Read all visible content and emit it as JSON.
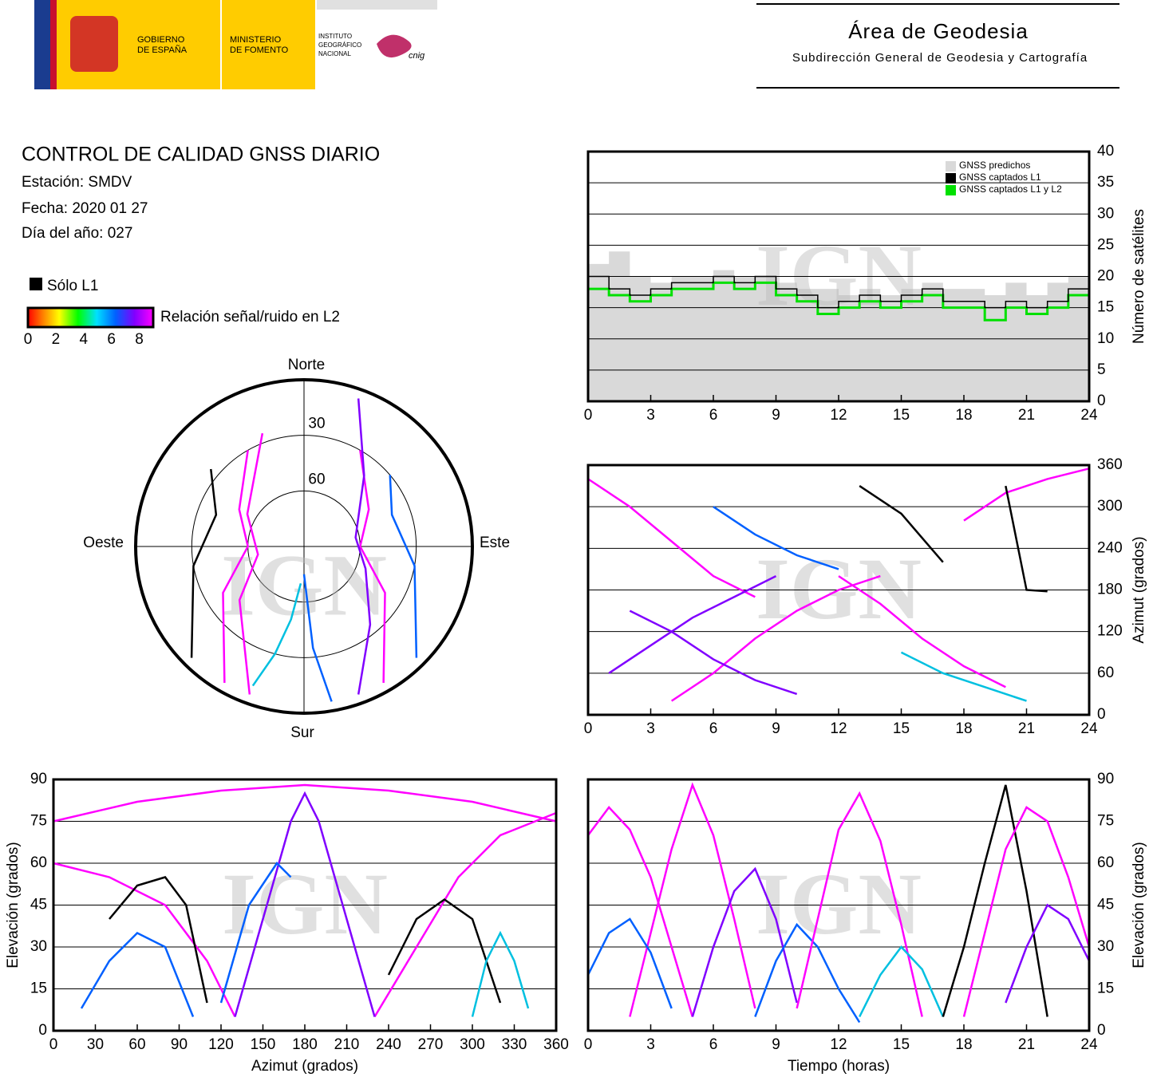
{
  "header": {
    "gobierno": [
      "GOBIERNO",
      "DE ESPAÑA"
    ],
    "ministerio": [
      "MINISTERIO",
      "DE FOMENTO"
    ],
    "instituto": [
      "INSTITUTO",
      "GEOGRÁFICO",
      "NACIONAL"
    ],
    "cnig": "cnig",
    "area": "Área de Geodesia",
    "subdireccion": "Subdirección General de Geodesia y Cartografía"
  },
  "report": {
    "title": "CONTROL DE CALIDAD GNSS DIARIO",
    "station": "Estación: SMDV",
    "date": "Fecha: 2020 01 27",
    "doy": "Día del año: 027",
    "l1_only": "Sólo L1",
    "snr_label": "Relación señal/ruido en L2",
    "snr_range": [
      0,
      9
    ],
    "snr_ticks": [
      0,
      2,
      4,
      6,
      8
    ],
    "watermark": "IGN"
  },
  "chart_data": [
    {
      "type": "step",
      "ylabel": "Número de satélites",
      "yaxis_side": "right",
      "grid": true,
      "legend": "upper right",
      "xlim": [
        0,
        24
      ],
      "xticks": [
        0,
        3,
        6,
        9,
        12,
        15,
        18,
        21,
        24
      ],
      "ylim": [
        0,
        40
      ],
      "yticks": [
        0,
        5,
        10,
        15,
        20,
        25,
        30,
        35,
        40
      ],
      "x": [
        0,
        1,
        2,
        3,
        4,
        5,
        6,
        7,
        8,
        9,
        10,
        11,
        12,
        13,
        14,
        15,
        16,
        17,
        18,
        19,
        20,
        21,
        22,
        23,
        24
      ],
      "series": [
        {
          "name": "GNSS predichos",
          "color": "#d9d9d9",
          "fill": true,
          "values": [
            22,
            24,
            20,
            19,
            20,
            20,
            21,
            20,
            20,
            19,
            18,
            18,
            17,
            18,
            17,
            18,
            19,
            18,
            18,
            17,
            19,
            17,
            19,
            20,
            21
          ]
        },
        {
          "name": "GNSS captados L1",
          "color": "#000000",
          "values": [
            20,
            18,
            17,
            18,
            19,
            19,
            20,
            19,
            20,
            18,
            17,
            15,
            16,
            17,
            16,
            17,
            18,
            16,
            16,
            15,
            16,
            15,
            16,
            18,
            19
          ]
        },
        {
          "name": "GNSS captados L1 y L2",
          "color": "#00e000",
          "values": [
            18,
            17,
            16,
            17,
            18,
            18,
            19,
            18,
            19,
            17,
            16,
            14,
            15,
            16,
            15,
            16,
            17,
            15,
            15,
            13,
            15,
            14,
            15,
            17,
            18
          ]
        }
      ]
    },
    {
      "type": "line",
      "ylabel": "Azimut (grados)",
      "yaxis_side": "right",
      "grid": true,
      "xlim": [
        0,
        24
      ],
      "xticks": [
        0,
        3,
        6,
        9,
        12,
        15,
        18,
        21,
        24
      ],
      "ylim": [
        0,
        360
      ],
      "yticks": [
        0,
        60,
        120,
        180,
        240,
        300,
        360
      ],
      "series": [
        {
          "color": "#ff00ff",
          "x": [
            0,
            2,
            4,
            6,
            8
          ],
          "values": [
            340,
            300,
            250,
            200,
            170
          ]
        },
        {
          "color": "#8000ff",
          "x": [
            1,
            3,
            5,
            7,
            9
          ],
          "values": [
            60,
            100,
            140,
            170,
            200
          ]
        },
        {
          "color": "#ff00ff",
          "x": [
            4,
            6,
            8,
            10,
            12,
            14
          ],
          "values": [
            20,
            60,
            110,
            150,
            180,
            200
          ]
        },
        {
          "color": "#0060ff",
          "x": [
            6,
            8,
            10,
            12
          ],
          "values": [
            300,
            260,
            230,
            210
          ]
        },
        {
          "color": "#000000",
          "x": [
            13,
            15,
            17
          ],
          "values": [
            330,
            290,
            220
          ]
        },
        {
          "color": "#ff00ff",
          "x": [
            12,
            14,
            16,
            18,
            20
          ],
          "values": [
            200,
            160,
            110,
            70,
            40
          ]
        },
        {
          "color": "#00c0e0",
          "x": [
            15,
            17,
            19,
            21
          ],
          "values": [
            90,
            60,
            40,
            20
          ]
        },
        {
          "color": "#ff00ff",
          "x": [
            18,
            20,
            22,
            24
          ],
          "values": [
            280,
            320,
            340,
            355
          ]
        },
        {
          "color": "#8000ff",
          "x": [
            2,
            4,
            6,
            8,
            10
          ],
          "values": [
            150,
            120,
            80,
            50,
            30
          ]
        },
        {
          "color": "#000000",
          "x": [
            20,
            21,
            22
          ],
          "values": [
            330,
            180,
            178
          ]
        }
      ]
    },
    {
      "type": "line",
      "xlabel": "Azimut (grados)",
      "ylabel": "Elevación (grados)",
      "yaxis_side": "left",
      "grid": true,
      "xlim": [
        0,
        360
      ],
      "xticks": [
        0,
        30,
        60,
        90,
        120,
        150,
        180,
        210,
        240,
        270,
        300,
        330,
        360
      ],
      "ylim": [
        0,
        90
      ],
      "yticks": [
        0,
        15,
        30,
        45,
        60,
        75,
        90
      ],
      "series": [
        {
          "color": "#ff00ff",
          "x": [
            0,
            60,
            120,
            180,
            240,
            300,
            360
          ],
          "values": [
            75,
            82,
            86,
            88,
            86,
            82,
            75
          ]
        },
        {
          "color": "#ff00ff",
          "x": [
            0,
            40,
            80,
            110,
            130
          ],
          "values": [
            60,
            55,
            45,
            25,
            5
          ]
        },
        {
          "color": "#ff00ff",
          "x": [
            230,
            260,
            290,
            320,
            360
          ],
          "values": [
            5,
            30,
            55,
            70,
            78
          ]
        },
        {
          "color": "#000000",
          "x": [
            40,
            60,
            80,
            95,
            110
          ],
          "values": [
            40,
            52,
            55,
            45,
            10
          ]
        },
        {
          "color": "#0060ff",
          "x": [
            20,
            40,
            60,
            80,
            100
          ],
          "values": [
            8,
            25,
            35,
            30,
            5
          ]
        },
        {
          "color": "#000000",
          "x": [
            240,
            260,
            280,
            300,
            320
          ],
          "values": [
            20,
            40,
            47,
            40,
            10
          ]
        },
        {
          "color": "#8000ff",
          "x": [
            130,
            150,
            170,
            180,
            190,
            210,
            230
          ],
          "values": [
            5,
            40,
            75,
            85,
            75,
            40,
            5
          ]
        },
        {
          "color": "#00c0e0",
          "x": [
            300,
            310,
            320,
            330,
            340
          ],
          "values": [
            5,
            25,
            35,
            25,
            8
          ]
        },
        {
          "color": "#0060ff",
          "x": [
            120,
            140,
            160,
            170
          ],
          "values": [
            10,
            45,
            60,
            55
          ]
        }
      ]
    },
    {
      "type": "line",
      "xlabel": "Tiempo (horas)",
      "ylabel": "Elevación (grados)",
      "yaxis_side": "right",
      "grid": true,
      "xlim": [
        0,
        24
      ],
      "xticks": [
        0,
        3,
        6,
        9,
        12,
        15,
        18,
        21,
        24
      ],
      "ylim": [
        0,
        90
      ],
      "yticks": [
        0,
        15,
        30,
        45,
        60,
        75,
        90
      ],
      "series": [
        {
          "color": "#ff00ff",
          "x": [
            0,
            1,
            2,
            3,
            4,
            5
          ],
          "values": [
            70,
            80,
            72,
            55,
            30,
            5
          ]
        },
        {
          "color": "#ff00ff",
          "x": [
            2,
            3,
            4,
            5,
            6,
            7,
            8
          ],
          "values": [
            5,
            35,
            65,
            88,
            70,
            40,
            8
          ]
        },
        {
          "color": "#8000ff",
          "x": [
            5,
            6,
            7,
            8,
            9,
            10
          ],
          "values": [
            5,
            30,
            50,
            58,
            40,
            10
          ]
        },
        {
          "color": "#0060ff",
          "x": [
            8,
            9,
            10,
            11,
            12,
            13
          ],
          "values": [
            5,
            25,
            38,
            30,
            15,
            3
          ]
        },
        {
          "color": "#ff00ff",
          "x": [
            10,
            11,
            12,
            13,
            14,
            15,
            16
          ],
          "values": [
            8,
            40,
            72,
            85,
            68,
            38,
            5
          ]
        },
        {
          "color": "#00c0e0",
          "x": [
            13,
            14,
            15,
            16,
            17
          ],
          "values": [
            5,
            20,
            30,
            22,
            5
          ]
        },
        {
          "color": "#000000",
          "x": [
            17,
            18,
            19,
            20,
            21,
            22
          ],
          "values": [
            5,
            30,
            60,
            88,
            50,
            5
          ]
        },
        {
          "color": "#ff00ff",
          "x": [
            18,
            19,
            20,
            21,
            22,
            23,
            24
          ],
          "values": [
            5,
            35,
            65,
            80,
            75,
            55,
            30
          ]
        },
        {
          "color": "#8000ff",
          "x": [
            20,
            21,
            22,
            23,
            24
          ],
          "values": [
            10,
            30,
            45,
            40,
            25
          ]
        },
        {
          "color": "#0060ff",
          "x": [
            0,
            1,
            2,
            3,
            4
          ],
          "values": [
            20,
            35,
            40,
            28,
            8
          ]
        }
      ]
    },
    {
      "type": "polar",
      "north": "Norte",
      "south": "Sur",
      "east": "Este",
      "west": "Oeste",
      "elevation_range": [
        0,
        90
      ],
      "rings": [
        30,
        60
      ],
      "series": [
        {
          "color": "#ff00ff",
          "azimuth": [
            150,
            120,
            90,
            60,
            30
          ],
          "elevation": [
            5,
            40,
            60,
            50,
            30
          ]
        },
        {
          "color": "#ff00ff",
          "azimuth": [
            210,
            240,
            270,
            300,
            330
          ],
          "elevation": [
            5,
            40,
            60,
            50,
            30
          ]
        },
        {
          "color": "#8000ff",
          "azimuth": [
            160,
            140,
            110,
            80,
            40,
            20
          ],
          "elevation": [
            5,
            35,
            55,
            62,
            40,
            5
          ]
        },
        {
          "color": "#000000",
          "azimuth": [
            225,
            260,
            290,
            310
          ],
          "elevation": [
            5,
            30,
            40,
            25
          ]
        },
        {
          "color": "#0060ff",
          "azimuth": [
            135,
            100,
            70,
            50
          ],
          "elevation": [
            5,
            30,
            40,
            30
          ]
        },
        {
          "color": "#00c0e0",
          "azimuth": [
            200,
            195,
            190,
            185
          ],
          "elevation": [
            10,
            30,
            50,
            70
          ]
        },
        {
          "color": "#ff00ff",
          "azimuth": [
            200,
            230,
            260,
            300,
            340
          ],
          "elevation": [
            5,
            45,
            65,
            55,
            25
          ]
        },
        {
          "color": "#0060ff",
          "azimuth": [
            170,
            175,
            180
          ],
          "elevation": [
            5,
            35,
            75
          ]
        }
      ]
    }
  ]
}
